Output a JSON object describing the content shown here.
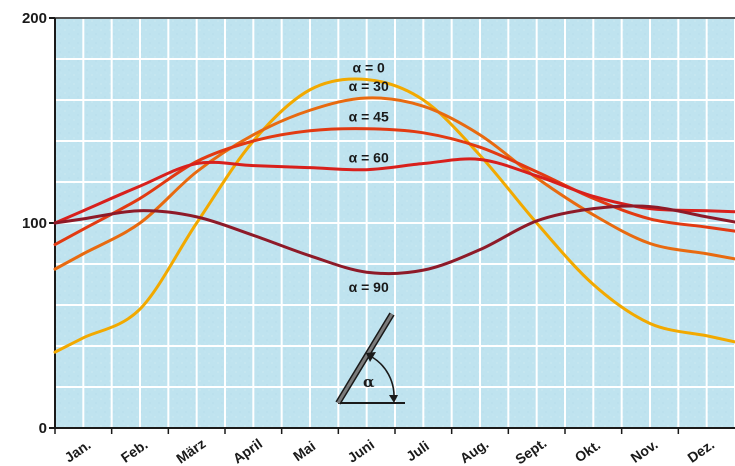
{
  "chart_data": {
    "type": "line",
    "title": "",
    "xlabel": "",
    "ylabel": "",
    "ylim": [
      0,
      200
    ],
    "yticks": [
      0,
      100,
      200
    ],
    "grid": true,
    "categories": [
      "Jan.",
      "Feb.",
      "März",
      "April",
      "Mai",
      "Juni",
      "Juli",
      "Aug.",
      "Sept.",
      "Okt.",
      "Nov.",
      "Dez."
    ],
    "series": [
      {
        "name": "α = 0",
        "color": "#f2a900",
        "values": [
          44,
          58,
          100,
          140,
          165,
          170,
          160,
          133,
          100,
          70,
          51,
          45
        ]
      },
      {
        "name": "α = 30",
        "color": "#e86a10",
        "values": [
          85,
          100,
          125,
          143,
          155,
          161,
          157,
          143,
          122,
          104,
          90,
          85
        ]
      },
      {
        "name": "α = 45",
        "color": "#e23a12",
        "values": [
          97,
          112,
          130,
          140,
          145,
          146,
          144,
          137,
          125,
          112,
          102,
          98
        ]
      },
      {
        "name": "α = 60",
        "color": "#d8201c",
        "values": [
          106,
          118,
          129,
          128,
          127,
          126,
          129,
          131,
          123,
          113,
          107,
          106
        ]
      },
      {
        "name": "α = 90",
        "color": "#8e1a28",
        "values": [
          102,
          106,
          103,
          94,
          84,
          76,
          77,
          87,
          101,
          107,
          108,
          103
        ]
      }
    ],
    "annotation": {
      "symbol": "α",
      "icon": "tilted-panel-angle-icon"
    }
  }
}
